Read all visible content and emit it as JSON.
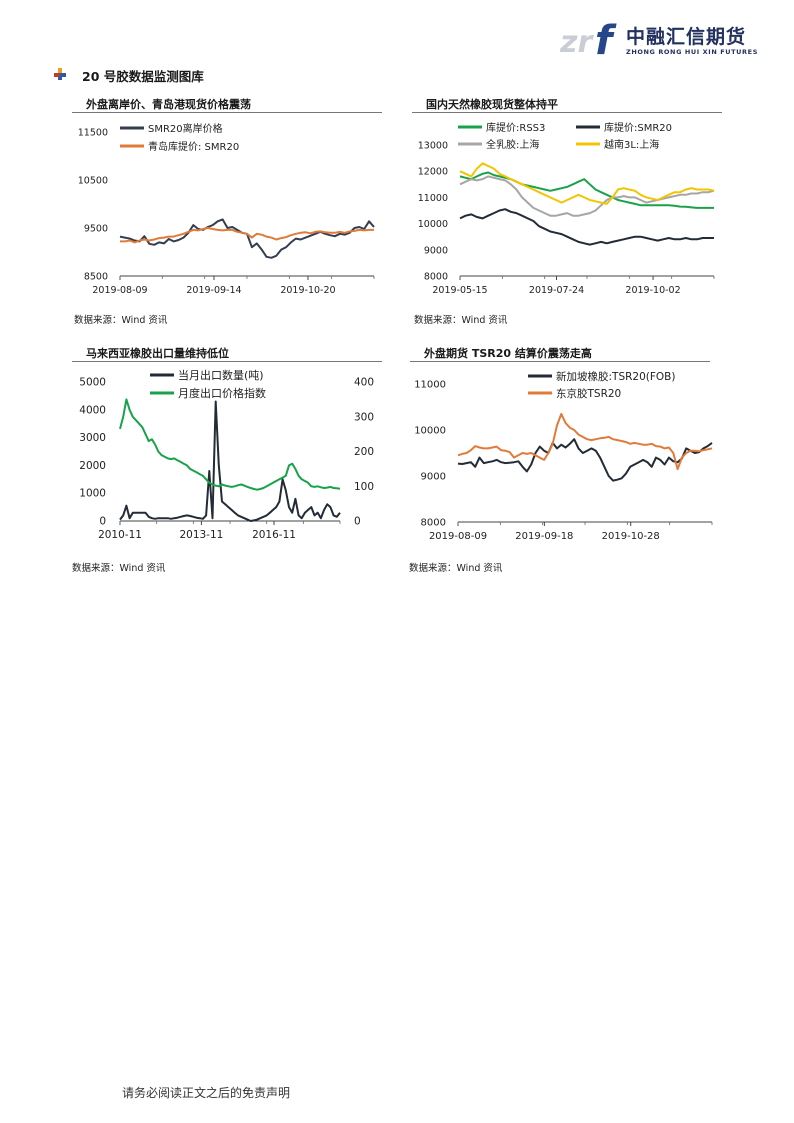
{
  "header": {
    "logo_cn": "中融汇信期货",
    "logo_en": "ZHONG RONG HUI XIN FUTURES",
    "section_title": "20 号胶数据监测图库"
  },
  "panels": [
    {
      "title": "外盘离岸价、青岛港现货价格震荡",
      "source": "数据来源：Wind 资讯",
      "chart_data": {
        "type": "line",
        "title": "外盘离岸价、青岛港现货价格震荡",
        "x_ticks": [
          "2019-08-09",
          "2019-09-14",
          "2019-10-20"
        ],
        "ylim": [
          8500,
          11500
        ],
        "yticks": [
          "11500",
          "10500",
          "9500",
          "8500"
        ],
        "legend_position": "top-left",
        "series": [
          {
            "name": "SMR20离岸价格",
            "color": "#333f50",
            "values": [
              9320,
              9300,
              9280,
              9240,
              9220,
              9330,
              9170,
              9150,
              9200,
              9180,
              9270,
              9220,
              9250,
              9300,
              9400,
              9560,
              9480,
              9460,
              9520,
              9560,
              9640,
              9680,
              9500,
              9520,
              9460,
              9400,
              9380,
              9100,
              9180,
              9050,
              8900,
              8880,
              8920,
              9050,
              9100,
              9200,
              9280,
              9260,
              9300,
              9340,
              9380,
              9420,
              9380,
              9350,
              9330,
              9380,
              9360,
              9400,
              9500,
              9520,
              9480,
              9640,
              9520
            ]
          },
          {
            "name": "青岛库提价: SMR20",
            "color": "#e07b39",
            "values": [
              9220,
              9220,
              9240,
              9200,
              9240,
              9260,
              9240,
              9260,
              9290,
              9300,
              9320,
              9320,
              9350,
              9380,
              9420,
              9460,
              9450,
              9480,
              9500,
              9480,
              9460,
              9450,
              9460,
              9460,
              9420,
              9400,
              9380,
              9300,
              9380,
              9360,
              9320,
              9300,
              9260,
              9290,
              9310,
              9350,
              9380,
              9400,
              9410,
              9390,
              9420,
              9430,
              9410,
              9400,
              9400,
              9420,
              9400,
              9430,
              9440,
              9460,
              9450,
              9460,
              9460
            ]
          }
        ]
      }
    },
    {
      "title": "国内天然橡胶现货整体持平",
      "source": "数据来源：Wind 资讯",
      "chart_data": {
        "type": "line",
        "title": "国内天然橡胶现货整体持平",
        "x_ticks": [
          "2019-05-15",
          "2019-07-24",
          "2019-10-02"
        ],
        "ylim": [
          8000,
          13000
        ],
        "yticks": [
          "13000",
          "12000",
          "11000",
          "10000",
          "9000",
          "8000"
        ],
        "legend_position": "top",
        "series": [
          {
            "name": "库提价:RSS3",
            "color": "#1aa24a",
            "values": [
              11800,
              11750,
              11700,
              11800,
              11900,
              11950,
              11850,
              11800,
              11750,
              11700,
              11600,
              11500,
              11450,
              11400,
              11350,
              11300,
              11250,
              11300,
              11350,
              11400,
              11500,
              11600,
              11700,
              11500,
              11300,
              11200,
              11100,
              11000,
              10900,
              10850,
              10800,
              10750,
              10700,
              10700,
              10700,
              10700,
              10700,
              10700,
              10680,
              10650,
              10640,
              10620,
              10600,
              10600,
              10600,
              10600
            ]
          },
          {
            "name": "库提价:SMR20",
            "color": "#222b36",
            "values": [
              10200,
              10300,
              10350,
              10250,
              10200,
              10300,
              10400,
              10500,
              10550,
              10450,
              10400,
              10300,
              10200,
              10100,
              9900,
              9800,
              9700,
              9650,
              9600,
              9500,
              9400,
              9300,
              9250,
              9200,
              9250,
              9300,
              9250,
              9300,
              9350,
              9400,
              9450,
              9500,
              9500,
              9450,
              9400,
              9350,
              9400,
              9450,
              9400,
              9400,
              9450,
              9400,
              9400,
              9450,
              9450,
              9450
            ]
          },
          {
            "name": "全乳胶:上海",
            "color": "#a6a6a6",
            "values": [
              11500,
              11600,
              11700,
              11650,
              11700,
              11800,
              11750,
              11700,
              11650,
              11500,
              11300,
              11000,
              10800,
              10600,
              10500,
              10400,
              10300,
              10300,
              10350,
              10400,
              10300,
              10300,
              10350,
              10400,
              10500,
              10700,
              10900,
              11000,
              11000,
              11050,
              11000,
              11000,
              10900,
              10800,
              10850,
              10900,
              10950,
              11000,
              11050,
              11100,
              11100,
              11150,
              11150,
              11200,
              11200,
              11250
            ]
          },
          {
            "name": "越南3L:上海",
            "color": "#f3c400",
            "values": [
              12000,
              11900,
              11800,
              12100,
              12300,
              12200,
              12100,
              11900,
              11800,
              11700,
              11600,
              11500,
              11400,
              11300,
              11200,
              11100,
              11000,
              10900,
              10800,
              10900,
              11000,
              11100,
              11000,
              10900,
              10850,
              10800,
              10750,
              11000,
              11300,
              11350,
              11300,
              11250,
              11100,
              11000,
              10950,
              10900,
              11000,
              11100,
              11200,
              11200,
              11300,
              11350,
              11300,
              11300,
              11300,
              11250
            ]
          }
        ]
      }
    },
    {
      "title": "马来西亚橡胶出口量维持低位",
      "source": "数据来源：Wind 资讯",
      "chart_data": {
        "type": "line",
        "title": "马来西亚橡胶出口量维持低位",
        "x_ticks": [
          "2010-11",
          "2013-11",
          "2016-11"
        ],
        "ylim": [
          0,
          5000
        ],
        "y2lim": [
          0,
          400
        ],
        "yticks": [
          "5000",
          "4000",
          "3000",
          "2000",
          "1000",
          "0"
        ],
        "y2ticks": [
          "400",
          "300",
          "200",
          "100",
          "0"
        ],
        "legend_position": "top",
        "series": [
          {
            "name": "当月出口数量(吨)",
            "color": "#222b36",
            "axis": "left",
            "values": [
              50,
              200,
              550,
              100,
              300,
              300,
              300,
              300,
              300,
              150,
              100,
              80,
              100,
              100,
              100,
              100,
              80,
              100,
              120,
              150,
              180,
              200,
              180,
              150,
              120,
              100,
              80,
              200,
              1800,
              100,
              4300,
              2000,
              700,
              600,
              500,
              400,
              300,
              200,
              150,
              100,
              50,
              0,
              20,
              50,
              100,
              150,
              200,
              300,
              400,
              500,
              700,
              1500,
              1100,
              500,
              300,
              800,
              200,
              100,
              300,
              400,
              500,
              200,
              300,
              100,
              400,
              600,
              500,
              200,
              150,
              300
            ]
          },
          {
            "name": "月度出口价格指数",
            "color": "#1aa24a",
            "axis": "right",
            "values": [
              265,
              300,
              350,
              320,
              300,
              290,
              280,
              270,
              250,
              230,
              235,
              220,
              200,
              190,
              185,
              180,
              178,
              180,
              175,
              170,
              165,
              160,
              150,
              145,
              140,
              135,
              130,
              120,
              110,
              105,
              102,
              100,
              105,
              102,
              100,
              98,
              100,
              103,
              105,
              102,
              98,
              95,
              92,
              90,
              92,
              95,
              100,
              105,
              110,
              115,
              120,
              125,
              130,
              160,
              165,
              150,
              130,
              120,
              115,
              110,
              100,
              98,
              100,
              97,
              95,
              96,
              98,
              95,
              94,
              93
            ]
          }
        ]
      }
    },
    {
      "title": "外盘期货 TSR20 结算价震荡走高",
      "source": "数据来源：Wind 资讯",
      "chart_data": {
        "type": "line",
        "title": "外盘期货 TSR20 结算价震荡走高",
        "x_ticks": [
          "2019-08-09",
          "2019-09-18",
          "2019-10-28"
        ],
        "ylim": [
          8000,
          11000
        ],
        "yticks": [
          "11000",
          "10000",
          "9000",
          "8000"
        ],
        "legend_position": "top",
        "series": [
          {
            "name": "新加坡橡胶:TSR20(FOB)",
            "color": "#222b36",
            "values": [
              9270,
              9260,
              9280,
              9300,
              9200,
              9400,
              9280,
              9300,
              9320,
              9350,
              9300,
              9280,
              9290,
              9300,
              9320,
              9200,
              9100,
              9250,
              9500,
              9640,
              9550,
              9500,
              9720,
              9600,
              9680,
              9620,
              9700,
              9800,
              9600,
              9500,
              9550,
              9600,
              9550,
              9400,
              9200,
              9000,
              8900,
              8920,
              8950,
              9050,
              9200,
              9250,
              9300,
              9350,
              9300,
              9200,
              9400,
              9350,
              9250,
              9400,
              9320,
              9300,
              9380,
              9600,
              9550,
              9500,
              9520,
              9600,
              9650,
              9720
            ]
          },
          {
            "name": "东京胶TSR20",
            "color": "#e07b39",
            "values": [
              9450,
              9480,
              9500,
              9560,
              9650,
              9620,
              9600,
              9600,
              9620,
              9640,
              9560,
              9550,
              9520,
              9400,
              9450,
              9500,
              9480,
              9500,
              9450,
              9400,
              9350,
              9500,
              9700,
              10100,
              10350,
              10150,
              10050,
              10000,
              9900,
              9850,
              9800,
              9780,
              9800,
              9820,
              9830,
              9850,
              9800,
              9780,
              9760,
              9740,
              9700,
              9720,
              9700,
              9680,
              9680,
              9700,
              9650,
              9640,
              9600,
              9620,
              9500,
              9150,
              9400,
              9500,
              9550,
              9550,
              9540,
              9560,
              9580,
              9600
            ]
          }
        ]
      }
    }
  ],
  "footer": "请务必阅读正文之后的免责声明"
}
